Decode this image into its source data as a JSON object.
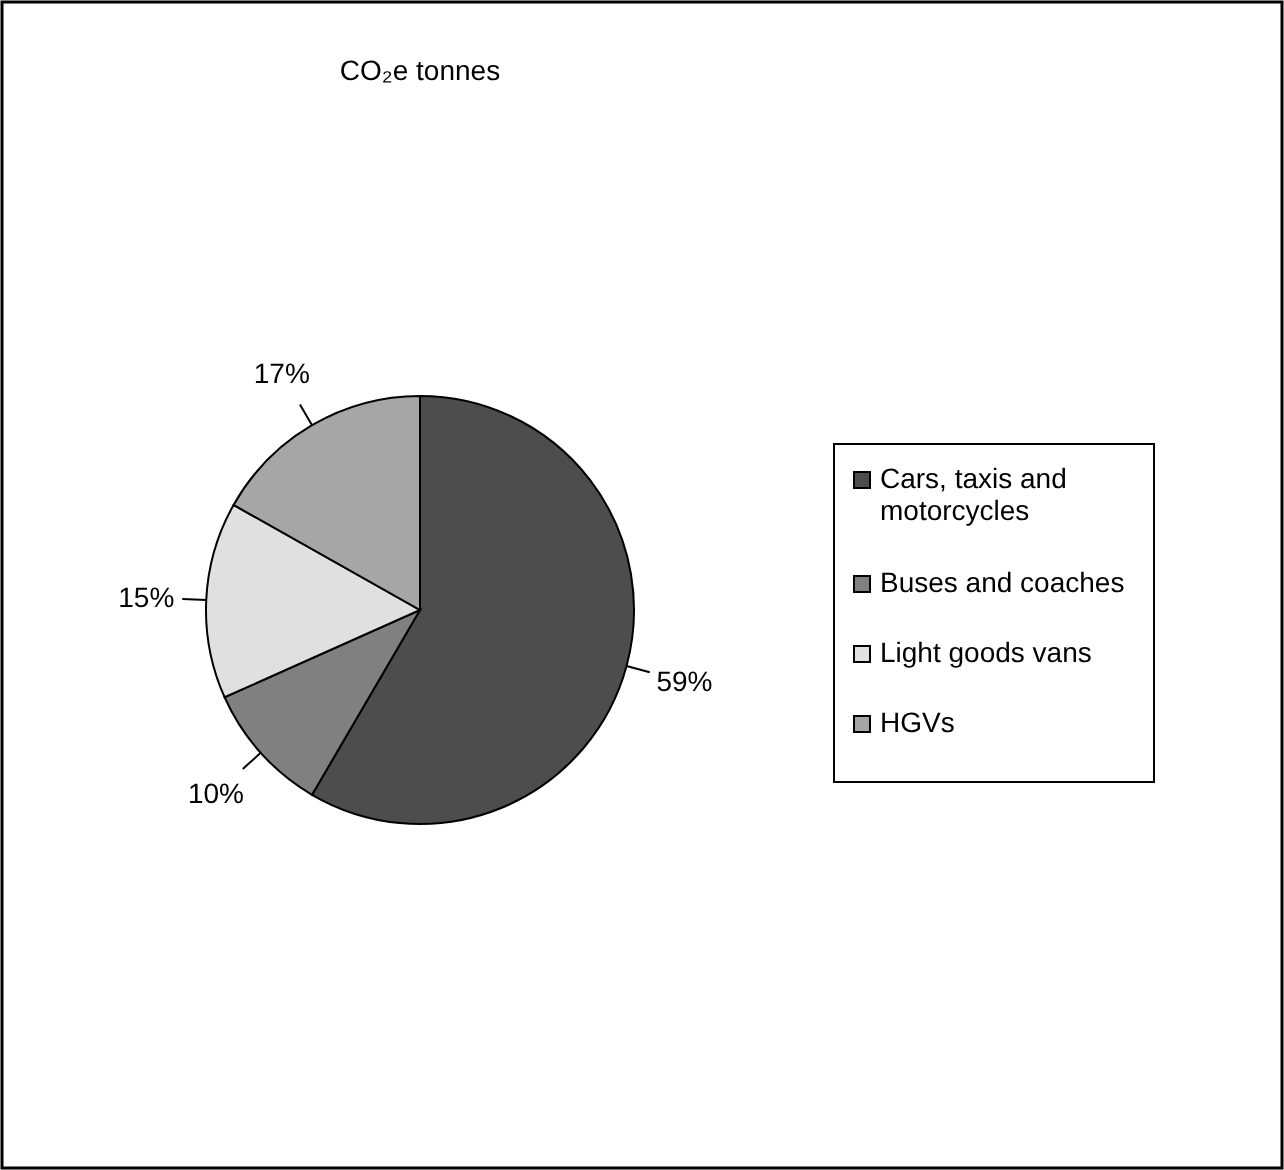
{
  "chart_data": {
    "type": "pie",
    "title": "CO₂e tonnes",
    "categories": [
      "Cars, taxis and motorcycles",
      "Buses and coaches",
      "Light goods vans",
      "HGVs"
    ],
    "values": [
      59,
      10,
      15,
      17
    ],
    "value_labels": [
      "59%",
      "10%",
      "15%",
      "17%"
    ],
    "colors": [
      "#4d4d4d",
      "#808080",
      "#e0e0e0",
      "#a6a6a6"
    ],
    "legend": "right"
  }
}
